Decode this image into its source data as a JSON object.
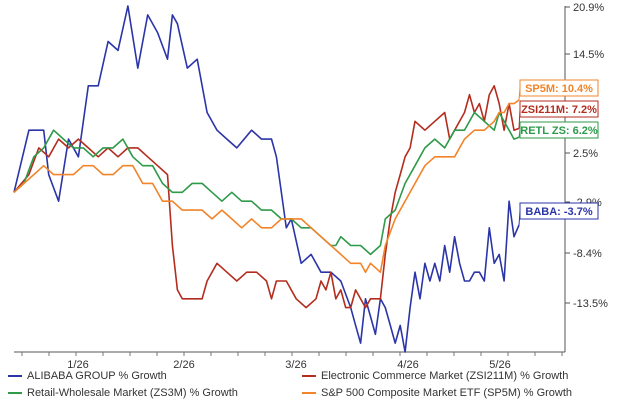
{
  "chart_data": {
    "type": "line",
    "x_tick_labels": [
      "1/26",
      "2/26",
      "3/26",
      "4/26",
      "5/26"
    ],
    "y_tick_labels": [
      "20.9%",
      "14.5%",
      "8.3%",
      "2.5%",
      "-2.9%",
      "-8.4%",
      "-13.5%"
    ],
    "ylim": [
      -18,
      21
    ],
    "grid": false,
    "legend_position": "bottom",
    "colors": {
      "alibaba": "#2b35a8",
      "ecommerce": "#b32d1f",
      "retail": "#2e9a4a",
      "sp500": "#f2842a"
    },
    "series": [
      {
        "key": "alibaba",
        "name": "ALIBABA GROUP % Growth",
        "end_label": "BABA: -3.7%",
        "end_value": -3.7,
        "values": [
          [
            0,
            0
          ],
          [
            6,
            7
          ],
          [
            12,
            7
          ],
          [
            14,
            2
          ],
          [
            18,
            -1
          ],
          [
            22,
            6
          ],
          [
            26,
            4
          ],
          [
            30,
            12
          ],
          [
            34,
            12
          ],
          [
            38,
            17
          ],
          [
            42,
            16
          ],
          [
            46,
            21
          ],
          [
            50,
            14
          ],
          [
            54,
            20
          ],
          [
            58,
            18
          ],
          [
            62,
            15
          ],
          [
            64,
            20
          ],
          [
            66,
            19
          ],
          [
            70,
            14
          ],
          [
            74,
            15
          ],
          [
            78,
            9
          ],
          [
            82,
            7
          ],
          [
            86,
            6
          ],
          [
            90,
            5
          ],
          [
            96,
            7
          ],
          [
            100,
            6
          ],
          [
            104,
            6
          ],
          [
            106,
            4
          ],
          [
            110,
            -4
          ],
          [
            112,
            -3
          ],
          [
            116,
            -8
          ],
          [
            120,
            -7
          ],
          [
            124,
            -9
          ],
          [
            128,
            -9
          ],
          [
            132,
            -10
          ],
          [
            136,
            -13
          ],
          [
            138,
            -15
          ],
          [
            140,
            -17
          ],
          [
            142,
            -12
          ],
          [
            144,
            -14
          ],
          [
            146,
            -16
          ],
          [
            148,
            -12
          ],
          [
            150,
            -13
          ],
          [
            152,
            -15
          ],
          [
            154,
            -17
          ],
          [
            156,
            -15
          ],
          [
            158,
            -18
          ],
          [
            160,
            -13
          ],
          [
            162,
            -9
          ],
          [
            164,
            -12
          ],
          [
            166,
            -8
          ],
          [
            168,
            -10
          ],
          [
            170,
            -8
          ],
          [
            172,
            -10
          ],
          [
            174,
            -6
          ],
          [
            176,
            -9
          ],
          [
            178,
            -5
          ],
          [
            180,
            -8
          ],
          [
            182,
            -10
          ],
          [
            184,
            -10
          ],
          [
            186,
            -9
          ],
          [
            188,
            -9
          ],
          [
            190,
            -10
          ],
          [
            192,
            -4
          ],
          [
            194,
            -8
          ],
          [
            196,
            -7
          ],
          [
            198,
            -10
          ],
          [
            200,
            -1
          ],
          [
            202,
            -5
          ],
          [
            204,
            -3.7
          ]
        ]
      },
      {
        "key": "ecommerce",
        "name": "Electronic Commerce Market (ZSI211M) % Growth",
        "end_label": "ZSI211M: 7.2%",
        "end_value": 7.2,
        "values": [
          [
            0,
            0
          ],
          [
            6,
            2
          ],
          [
            10,
            5
          ],
          [
            14,
            4
          ],
          [
            18,
            6
          ],
          [
            22,
            5
          ],
          [
            26,
            6
          ],
          [
            30,
            5
          ],
          [
            34,
            4
          ],
          [
            38,
            5
          ],
          [
            42,
            4
          ],
          [
            46,
            5
          ],
          [
            50,
            5
          ],
          [
            54,
            4
          ],
          [
            58,
            3
          ],
          [
            62,
            2
          ],
          [
            64,
            -6
          ],
          [
            66,
            -11
          ],
          [
            68,
            -12
          ],
          [
            72,
            -12
          ],
          [
            76,
            -12
          ],
          [
            78,
            -10
          ],
          [
            82,
            -8
          ],
          [
            86,
            -9
          ],
          [
            90,
            -10
          ],
          [
            94,
            -9
          ],
          [
            98,
            -9
          ],
          [
            102,
            -10
          ],
          [
            104,
            -12
          ],
          [
            106,
            -10
          ],
          [
            110,
            -10
          ],
          [
            114,
            -12
          ],
          [
            118,
            -13
          ],
          [
            122,
            -12
          ],
          [
            124,
            -10
          ],
          [
            126,
            -11
          ],
          [
            128,
            -9
          ],
          [
            130,
            -12
          ],
          [
            132,
            -11
          ],
          [
            134,
            -13
          ],
          [
            136,
            -13
          ],
          [
            138,
            -11
          ],
          [
            142,
            -13
          ],
          [
            144,
            -12
          ],
          [
            146,
            -12
          ],
          [
            148,
            -12
          ],
          [
            150,
            -7
          ],
          [
            152,
            -3
          ],
          [
            154,
            0
          ],
          [
            156,
            2
          ],
          [
            158,
            4
          ],
          [
            160,
            5
          ],
          [
            162,
            8
          ],
          [
            166,
            7
          ],
          [
            170,
            8
          ],
          [
            174,
            9
          ],
          [
            176,
            6
          ],
          [
            178,
            7
          ],
          [
            182,
            9
          ],
          [
            184,
            11
          ],
          [
            186,
            9
          ],
          [
            188,
            10
          ],
          [
            190,
            8
          ],
          [
            192,
            11
          ],
          [
            194,
            12
          ],
          [
            196,
            10
          ],
          [
            198,
            7
          ],
          [
            200,
            10
          ],
          [
            202,
            7
          ],
          [
            204,
            7.2
          ]
        ]
      },
      {
        "key": "retail",
        "name": "Retail-Wholesale Market (ZS3M) % Growth",
        "end_label": "RETL ZS: 6.2%",
        "end_value": 6.2,
        "values": [
          [
            0,
            0
          ],
          [
            4,
            1
          ],
          [
            8,
            4
          ],
          [
            12,
            5
          ],
          [
            16,
            7
          ],
          [
            20,
            6
          ],
          [
            24,
            5
          ],
          [
            28,
            5
          ],
          [
            32,
            4
          ],
          [
            36,
            5
          ],
          [
            40,
            5
          ],
          [
            44,
            6
          ],
          [
            48,
            4
          ],
          [
            52,
            3
          ],
          [
            56,
            3
          ],
          [
            60,
            1
          ],
          [
            64,
            0
          ],
          [
            68,
            0
          ],
          [
            72,
            1
          ],
          [
            76,
            1
          ],
          [
            80,
            0
          ],
          [
            84,
            -1
          ],
          [
            88,
            0
          ],
          [
            92,
            -1
          ],
          [
            96,
            -1
          ],
          [
            100,
            -2
          ],
          [
            104,
            -2
          ],
          [
            108,
            -3
          ],
          [
            112,
            -3
          ],
          [
            116,
            -4
          ],
          [
            120,
            -4
          ],
          [
            124,
            -5
          ],
          [
            128,
            -6
          ],
          [
            130,
            -6
          ],
          [
            132,
            -5
          ],
          [
            136,
            -6
          ],
          [
            140,
            -6
          ],
          [
            144,
            -7
          ],
          [
            148,
            -6
          ],
          [
            150,
            -3
          ],
          [
            154,
            -2
          ],
          [
            158,
            1
          ],
          [
            162,
            3
          ],
          [
            166,
            5
          ],
          [
            170,
            6
          ],
          [
            174,
            5
          ],
          [
            178,
            7
          ],
          [
            182,
            7
          ],
          [
            186,
            9
          ],
          [
            190,
            8
          ],
          [
            194,
            7
          ],
          [
            196,
            9
          ],
          [
            198,
            8
          ],
          [
            200,
            7
          ],
          [
            202,
            6
          ],
          [
            204,
            6.2
          ]
        ]
      },
      {
        "key": "sp500",
        "name": "S&P 500 Composite Market ETF (SP5M) % Growth",
        "end_label": "SP5M: 10.4%",
        "end_value": 10.4,
        "values": [
          [
            0,
            0
          ],
          [
            4,
            1
          ],
          [
            8,
            2
          ],
          [
            12,
            3
          ],
          [
            16,
            2
          ],
          [
            20,
            2
          ],
          [
            24,
            2
          ],
          [
            28,
            3
          ],
          [
            32,
            3
          ],
          [
            36,
            2
          ],
          [
            40,
            2
          ],
          [
            44,
            3
          ],
          [
            48,
            3
          ],
          [
            52,
            1
          ],
          [
            56,
            1
          ],
          [
            60,
            -1
          ],
          [
            64,
            -1
          ],
          [
            68,
            -2
          ],
          [
            72,
            -2
          ],
          [
            76,
            -2
          ],
          [
            80,
            -3
          ],
          [
            84,
            -2
          ],
          [
            88,
            -3
          ],
          [
            92,
            -4
          ],
          [
            96,
            -3
          ],
          [
            100,
            -4
          ],
          [
            104,
            -4
          ],
          [
            108,
            -3
          ],
          [
            112,
            -3
          ],
          [
            116,
            -3
          ],
          [
            120,
            -4
          ],
          [
            124,
            -5
          ],
          [
            128,
            -6
          ],
          [
            132,
            -7
          ],
          [
            136,
            -8
          ],
          [
            140,
            -8
          ],
          [
            142,
            -9
          ],
          [
            144,
            -8
          ],
          [
            148,
            -9
          ],
          [
            150,
            -6
          ],
          [
            154,
            -3
          ],
          [
            158,
            -1
          ],
          [
            162,
            1
          ],
          [
            166,
            3
          ],
          [
            170,
            4
          ],
          [
            174,
            4
          ],
          [
            178,
            4
          ],
          [
            182,
            6
          ],
          [
            186,
            7
          ],
          [
            190,
            7
          ],
          [
            194,
            8
          ],
          [
            196,
            9
          ],
          [
            198,
            9
          ],
          [
            200,
            10
          ],
          [
            202,
            10
          ],
          [
            204,
            10.4
          ]
        ]
      }
    ],
    "x_tick_positions": [
      35,
      96,
      157,
      218,
      280
    ]
  }
}
